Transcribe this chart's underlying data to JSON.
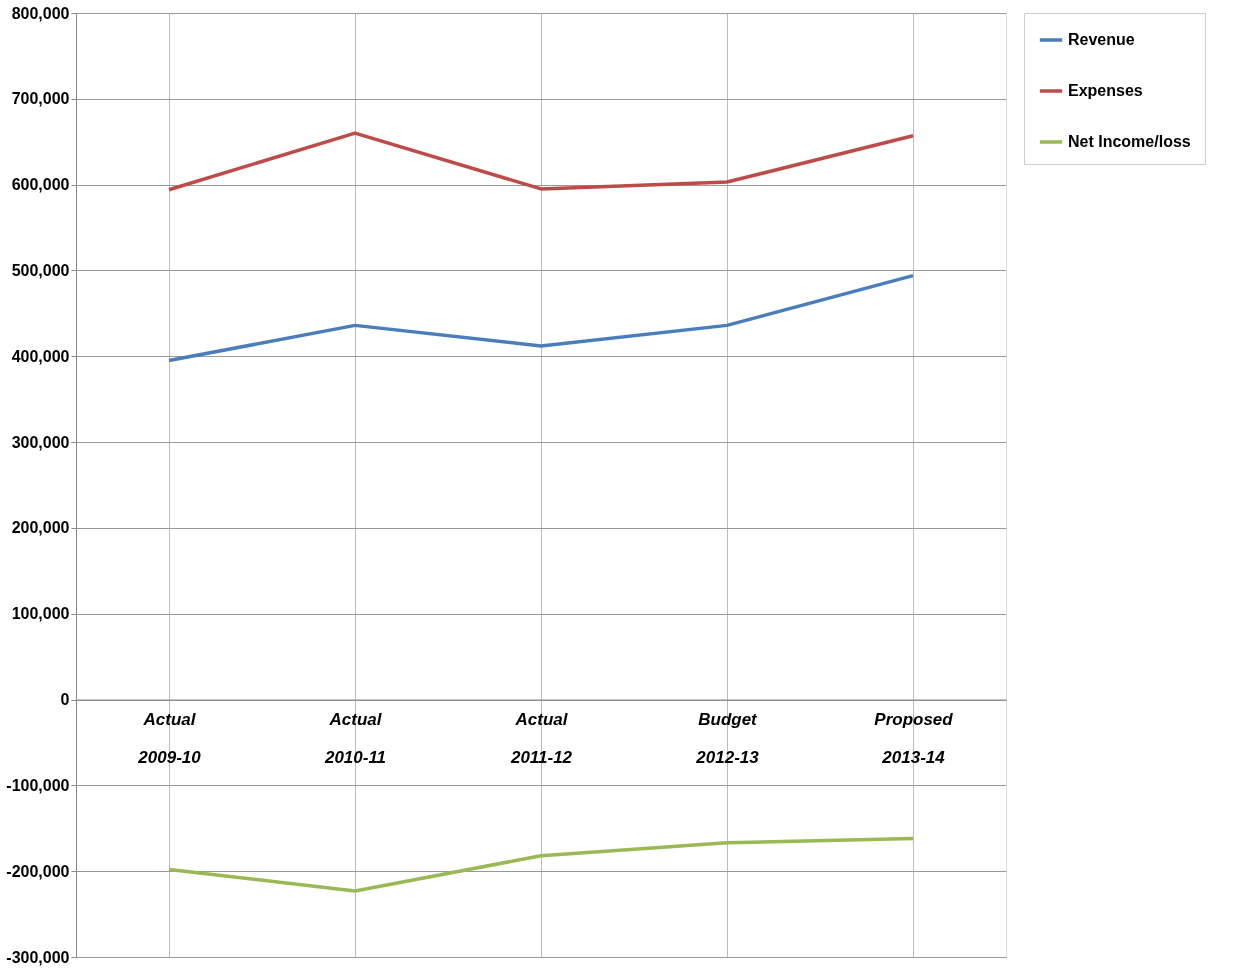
{
  "chart_data": {
    "type": "line",
    "categories": [
      "Actual 2009-10",
      "Actual 2010-11",
      "Actual 2011-12",
      "Budget 2012-13",
      "Proposed 2013-14"
    ],
    "series": [
      {
        "name": "Revenue",
        "color": "#4a7ebb",
        "values": [
          395000,
          436000,
          412000,
          436000,
          494000
        ]
      },
      {
        "name": "Expenses",
        "color": "#be4b48",
        "values": [
          594000,
          660000,
          595000,
          603000,
          657000
        ]
      },
      {
        "name": "Net Income/loss",
        "color": "#98b954",
        "values": [
          -198000,
          -223000,
          -182000,
          -167000,
          -162000
        ]
      }
    ],
    "ylim": [
      -300000,
      800000
    ],
    "yticks": [
      {
        "value": -300000,
        "label": "-300,000"
      },
      {
        "value": -200000,
        "label": "-200,000"
      },
      {
        "value": -100000,
        "label": "-100,000"
      },
      0,
      {
        "value": 100000,
        "label": "100,000"
      },
      {
        "value": 200000,
        "label": "200,000"
      },
      {
        "value": 300000,
        "label": "300,000"
      },
      {
        "value": 400000,
        "label": "400,000"
      },
      {
        "value": 500000,
        "label": "500,000"
      },
      {
        "value": 600000,
        "label": "600,000"
      },
      {
        "value": 700000,
        "label": "700,000"
      },
      {
        "value": 800000,
        "label": "800,000"
      }
    ],
    "grid": true,
    "legend": "right",
    "marker": "none",
    "line_style": "solid"
  }
}
